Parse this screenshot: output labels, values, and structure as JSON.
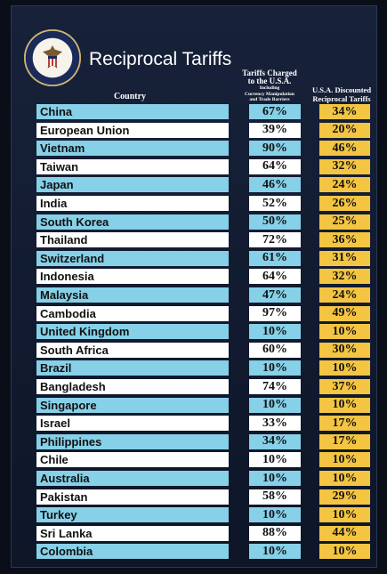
{
  "title": "Reciprocal Tariffs",
  "headers": {
    "country": "Country",
    "charged_line1": "Tariffs Charged",
    "charged_line2": "to the U.S.A.",
    "charged_line3": "Including",
    "charged_line4": "Currency Manipulation",
    "charged_line5": "and Trade Barriers",
    "discounted_line1": "U.S.A. Discounted",
    "discounted_line2": "Reciprocal Tariffs"
  },
  "colors": {
    "row_blue": "#86d0e8",
    "row_white": "#ffffff",
    "discount_yellow": "#f4c542",
    "background": "#111a2e"
  },
  "rows": [
    {
      "country": "China",
      "charged": "67%",
      "discounted": "34%"
    },
    {
      "country": "European Union",
      "charged": "39%",
      "discounted": "20%"
    },
    {
      "country": "Vietnam",
      "charged": "90%",
      "discounted": "46%"
    },
    {
      "country": "Taiwan",
      "charged": "64%",
      "discounted": "32%"
    },
    {
      "country": "Japan",
      "charged": "46%",
      "discounted": "24%"
    },
    {
      "country": "India",
      "charged": "52%",
      "discounted": "26%"
    },
    {
      "country": "South Korea",
      "charged": "50%",
      "discounted": "25%"
    },
    {
      "country": "Thailand",
      "charged": "72%",
      "discounted": "36%"
    },
    {
      "country": "Switzerland",
      "charged": "61%",
      "discounted": "31%"
    },
    {
      "country": "Indonesia",
      "charged": "64%",
      "discounted": "32%"
    },
    {
      "country": "Malaysia",
      "charged": "47%",
      "discounted": "24%"
    },
    {
      "country": "Cambodia",
      "charged": "97%",
      "discounted": "49%"
    },
    {
      "country": "United Kingdom",
      "charged": "10%",
      "discounted": "10%"
    },
    {
      "country": "South Africa",
      "charged": "60%",
      "discounted": "30%"
    },
    {
      "country": "Brazil",
      "charged": "10%",
      "discounted": "10%"
    },
    {
      "country": "Bangladesh",
      "charged": "74%",
      "discounted": "37%"
    },
    {
      "country": "Singapore",
      "charged": "10%",
      "discounted": "10%"
    },
    {
      "country": "Israel",
      "charged": "33%",
      "discounted": "17%"
    },
    {
      "country": "Philippines",
      "charged": "34%",
      "discounted": "17%"
    },
    {
      "country": "Chile",
      "charged": "10%",
      "discounted": "10%"
    },
    {
      "country": "Australia",
      "charged": "10%",
      "discounted": "10%"
    },
    {
      "country": "Pakistan",
      "charged": "58%",
      "discounted": "29%"
    },
    {
      "country": "Turkey",
      "charged": "10%",
      "discounted": "10%"
    },
    {
      "country": "Sri Lanka",
      "charged": "88%",
      "discounted": "44%"
    },
    {
      "country": "Colombia",
      "charged": "10%",
      "discounted": "10%"
    }
  ]
}
